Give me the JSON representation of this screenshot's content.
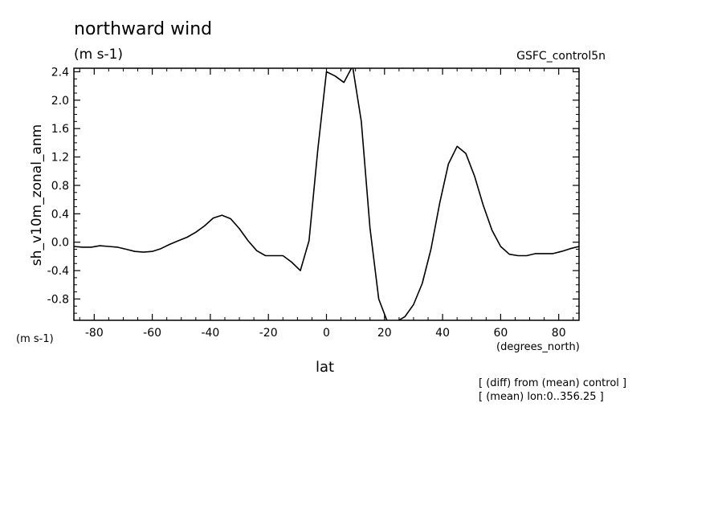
{
  "header": {
    "title": "northward wind",
    "units": "(m s-1)",
    "dataset": "GSFC_control5n"
  },
  "notes": [
    "[ (diff) from (mean) control ]",
    "[ (mean) lon:0..356.25 ]"
  ],
  "chart_data": {
    "type": "line",
    "title": "northward wind",
    "ylabel": "sh_v10m_zonal_anm",
    "yunits": "(m s-1)",
    "xlabel": "lat",
    "xunits": "(degrees_north)",
    "xlim": [
      -87,
      87
    ],
    "ylim": [
      -1.1,
      2.45
    ],
    "xticks": [
      -80,
      -60,
      -40,
      -20,
      0,
      20,
      40,
      60,
      80
    ],
    "xtick_labels": [
      "-80",
      "-60",
      "-40",
      "-20",
      "0",
      "20",
      "40",
      "60",
      "80"
    ],
    "yticks": [
      2.4,
      2.0,
      1.6,
      1.2,
      0.8,
      0.4,
      0.0,
      -0.4,
      -0.8
    ],
    "ytick_labels": [
      "2.4",
      "2.0",
      "1.6",
      "1.2",
      "0.8",
      "0.4",
      "0.0",
      "-0.4",
      "-0.8"
    ],
    "grid": false,
    "color": "#000000",
    "series": [
      {
        "x": [
          -87,
          -84,
          -81,
          -78,
          -75,
          -72,
          -69,
          -66,
          -63,
          -60,
          -57,
          -54,
          -51,
          -48,
          -45,
          -42,
          -39,
          -36,
          -33,
          -30,
          -27,
          -24,
          -21,
          -18,
          -15,
          -12,
          -9,
          -6,
          -3,
          0,
          3,
          6,
          9,
          12,
          15,
          18,
          21,
          24,
          27,
          30,
          33,
          36,
          39,
          42,
          45,
          48,
          51,
          54,
          57,
          60,
          63,
          66,
          69,
          72,
          75,
          78,
          81,
          84,
          87
        ],
        "y": [
          -0.06,
          -0.07,
          -0.07,
          -0.05,
          -0.06,
          -0.07,
          -0.1,
          -0.13,
          -0.14,
          -0.13,
          -0.09,
          -0.03,
          0.02,
          0.07,
          0.14,
          0.23,
          0.34,
          0.38,
          0.33,
          0.19,
          0.02,
          -0.12,
          -0.19,
          -0.19,
          -0.19,
          -0.28,
          -0.4,
          0.02,
          1.3,
          2.4,
          2.34,
          2.25,
          2.48,
          1.7,
          0.2,
          -0.8,
          -1.12,
          -1.12,
          -1.05,
          -0.88,
          -0.58,
          -0.1,
          0.55,
          1.1,
          1.35,
          1.25,
          0.93,
          0.52,
          0.17,
          -0.06,
          -0.17,
          -0.19,
          -0.19,
          -0.16,
          -0.16,
          -0.16,
          -0.13,
          -0.09,
          -0.06
        ]
      }
    ]
  }
}
